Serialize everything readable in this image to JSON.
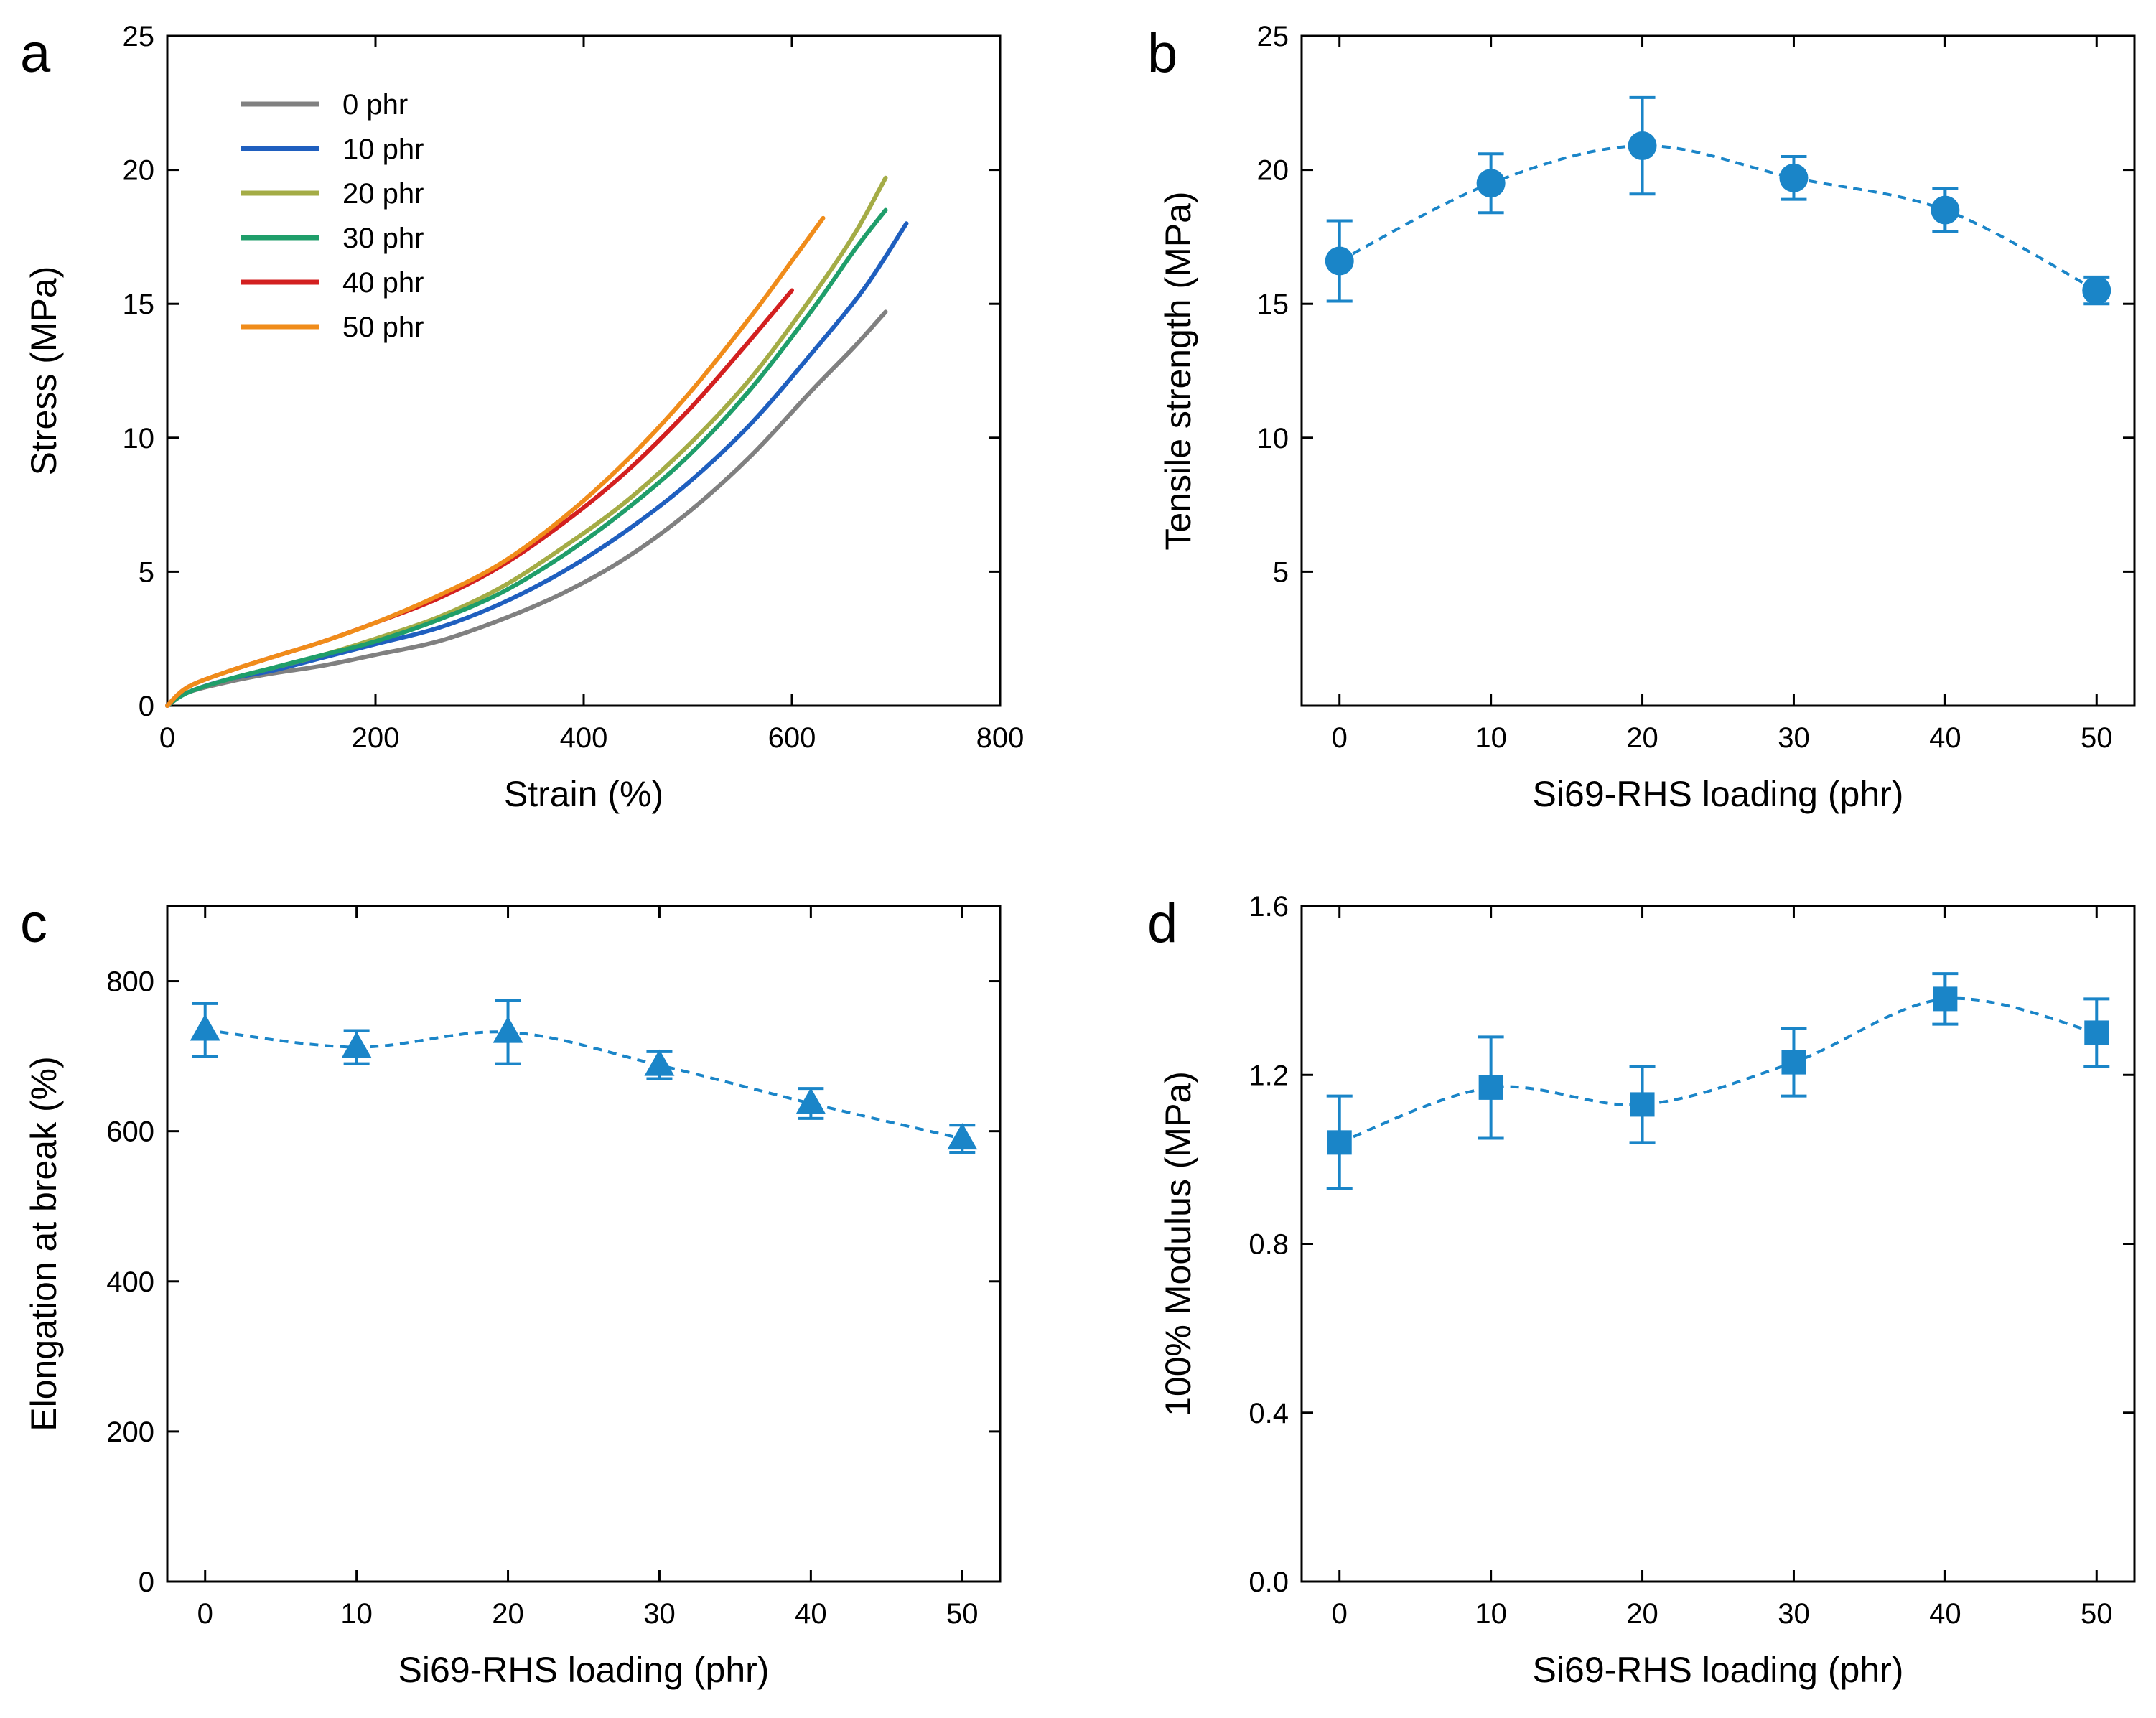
{
  "chart_data": [
    {
      "panel": "a",
      "type": "line",
      "xlabel": "Strain (%)",
      "ylabel": "Stress (MPa)",
      "xlim": [
        0,
        800
      ],
      "ylim": [
        0,
        25
      ],
      "xticks": [
        0,
        200,
        400,
        600,
        800
      ],
      "yticks": [
        0,
        5,
        10,
        15,
        20,
        25
      ],
      "legend_position": "top-left",
      "series": [
        {
          "name": "0 phr",
          "color": "#808080",
          "x": [
            0,
            20,
            60,
            100,
            150,
            200,
            260,
            320,
            380,
            440,
            500,
            560,
            620,
            660,
            690
          ],
          "y": [
            0,
            0.5,
            0.9,
            1.2,
            1.5,
            1.9,
            2.4,
            3.2,
            4.2,
            5.5,
            7.2,
            9.3,
            11.8,
            13.4,
            14.7
          ]
        },
        {
          "name": "10 phr",
          "color": "#1f5fbf",
          "x": [
            0,
            20,
            60,
            100,
            150,
            200,
            260,
            320,
            380,
            440,
            500,
            560,
            620,
            670,
            710
          ],
          "y": [
            0,
            0.5,
            1.0,
            1.3,
            1.8,
            2.3,
            2.9,
            3.8,
            5.0,
            6.5,
            8.3,
            10.5,
            13.2,
            15.6,
            18.0
          ]
        },
        {
          "name": "20 phr",
          "color": "#a4ac46",
          "x": [
            0,
            20,
            60,
            100,
            150,
            200,
            260,
            320,
            380,
            440,
            500,
            560,
            620,
            660,
            690
          ],
          "y": [
            0,
            0.5,
            1.0,
            1.4,
            1.9,
            2.5,
            3.3,
            4.4,
            5.9,
            7.6,
            9.7,
            12.2,
            15.3,
            17.6,
            19.7
          ]
        },
        {
          "name": "30 phr",
          "color": "#1f9e6a",
          "x": [
            0,
            20,
            60,
            100,
            150,
            200,
            260,
            320,
            380,
            440,
            500,
            560,
            620,
            660,
            690
          ],
          "y": [
            0,
            0.5,
            1.0,
            1.4,
            1.9,
            2.4,
            3.2,
            4.2,
            5.6,
            7.3,
            9.3,
            11.8,
            14.8,
            17.0,
            18.5
          ]
        },
        {
          "name": "40 phr",
          "color": "#d32020",
          "x": [
            0,
            20,
            60,
            100,
            150,
            200,
            260,
            320,
            380,
            440,
            500,
            550,
            600
          ],
          "y": [
            0,
            0.7,
            1.3,
            1.8,
            2.4,
            3.1,
            4.0,
            5.2,
            6.8,
            8.7,
            11.0,
            13.2,
            15.5
          ]
        },
        {
          "name": "50 phr",
          "color": "#f08c1a",
          "x": [
            0,
            20,
            60,
            100,
            150,
            200,
            260,
            320,
            380,
            440,
            500,
            560,
            600,
            630
          ],
          "y": [
            0,
            0.7,
            1.3,
            1.8,
            2.4,
            3.1,
            4.1,
            5.3,
            7.0,
            9.1,
            11.6,
            14.5,
            16.6,
            18.2
          ]
        }
      ]
    },
    {
      "panel": "b",
      "type": "scatter",
      "marker": "circle",
      "color": "#1a85c8",
      "xlabel": "Si69-RHS loading (phr)",
      "ylabel": "Tensile strength (MPa)",
      "xlim": [
        -2.5,
        52.5
      ],
      "ylim": [
        0,
        25
      ],
      "xticks": [
        0,
        10,
        20,
        30,
        40,
        50
      ],
      "yticks": [
        5,
        10,
        15,
        20,
        25
      ],
      "x": [
        0,
        10,
        20,
        30,
        40,
        50
      ],
      "values": [
        16.6,
        19.5,
        20.9,
        19.7,
        18.5,
        15.5
      ],
      "errors": [
        1.5,
        1.1,
        1.8,
        0.8,
        0.8,
        0.5
      ],
      "fit_line": "dashed"
    },
    {
      "panel": "c",
      "type": "scatter",
      "marker": "triangle",
      "color": "#1a85c8",
      "xlabel": "Si69-RHS loading (phr)",
      "ylabel": "Elongation at break (%)",
      "xlim": [
        -2.5,
        52.5
      ],
      "ylim": [
        0,
        900
      ],
      "xticks": [
        0,
        10,
        20,
        30,
        40,
        50
      ],
      "yticks": [
        0,
        200,
        400,
        600,
        800
      ],
      "x": [
        0,
        10,
        20,
        30,
        40,
        50
      ],
      "values": [
        735,
        712,
        732,
        688,
        637,
        590
      ],
      "errors": [
        35,
        22,
        42,
        18,
        20,
        18
      ],
      "fit_line": "dashed"
    },
    {
      "panel": "d",
      "type": "scatter",
      "marker": "square",
      "color": "#1a85c8",
      "xlabel": "Si69-RHS loading (phr)",
      "ylabel": "100% Modulus (MPa)",
      "xlim": [
        -2.5,
        52.5
      ],
      "ylim": [
        0.0,
        1.6
      ],
      "xticks": [
        0,
        10,
        20,
        30,
        40,
        50
      ],
      "yticks": [
        0.0,
        0.4,
        0.8,
        1.2,
        1.6
      ],
      "x": [
        0,
        10,
        20,
        30,
        40,
        50
      ],
      "values": [
        1.04,
        1.17,
        1.13,
        1.23,
        1.38,
        1.3
      ],
      "errors": [
        0.11,
        0.12,
        0.09,
        0.08,
        0.06,
        0.08
      ],
      "fit_line": "dashed"
    }
  ]
}
